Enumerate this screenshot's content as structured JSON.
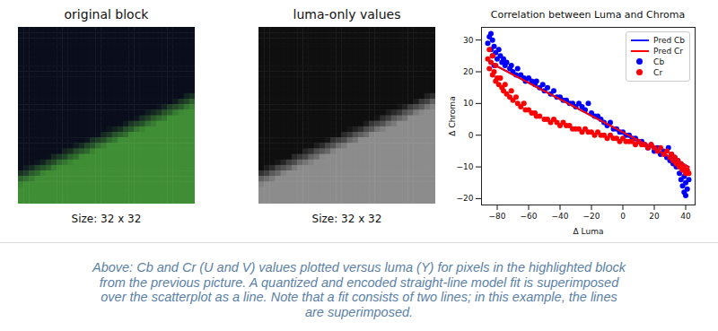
{
  "chart_data": [
    {
      "type": "image",
      "title": "original block",
      "subtitle": "Size: 32 x 32",
      "color": "#3f8e35"
    },
    {
      "type": "image",
      "title": "luma-only values",
      "subtitle": "Size: 32 x 32",
      "color": "#8c8c8c"
    },
    {
      "type": "scatter",
      "title": "Correlation between Luma and Chroma",
      "x_label": "Δ Luma",
      "y_label": "Δ Chroma",
      "xlim": [
        -90,
        46
      ],
      "ylim": [
        -22,
        34
      ],
      "xticks": [
        -80,
        -60,
        -40,
        -20,
        0,
        20,
        40
      ],
      "yticks": [
        -20,
        -10,
        0,
        10,
        20,
        30
      ],
      "legend": "upper right",
      "series": [
        {
          "name": "Pred Cb",
          "type": "line",
          "color": "#1a1aff",
          "x": [
            -85,
            42
          ],
          "values": [
            23,
            -10
          ]
        },
        {
          "name": "Pred Cr",
          "type": "line",
          "color": "#ff0000",
          "x": [
            -85,
            42
          ],
          "values": [
            23,
            -10
          ]
        },
        {
          "name": "Cb",
          "type": "scatter",
          "color": "#0000ff",
          "x": [
            -86,
            -85,
            -84,
            -84,
            -83,
            -83,
            -82,
            -82,
            -81,
            -80,
            -79,
            -78,
            -77,
            -76,
            -75,
            -74,
            -72,
            -71,
            -70,
            -68,
            -67,
            -65,
            -63,
            -62,
            -60,
            -58,
            -56,
            -55,
            -53,
            -51,
            -50,
            -48,
            -46,
            -44,
            -42,
            -40,
            -38,
            -36,
            -34,
            -32,
            -30,
            -28,
            -26,
            -24,
            -22,
            -20,
            -18,
            -16,
            -14,
            -12,
            -10,
            -8,
            -6,
            -4,
            -2,
            0,
            2,
            4,
            6,
            8,
            10,
            12,
            14,
            16,
            18,
            20,
            22,
            24,
            26,
            28,
            29,
            30,
            31,
            32,
            33,
            34,
            35,
            36,
            36,
            37,
            38,
            38,
            39,
            39,
            40,
            40,
            41,
            41,
            42
          ],
          "values": [
            29,
            31,
            32,
            27,
            30,
            25,
            28,
            22,
            26,
            24,
            27,
            25,
            23,
            24,
            22,
            23,
            21,
            22,
            20,
            19,
            21,
            19,
            18,
            17,
            18,
            17,
            16,
            17,
            15,
            16,
            14,
            15,
            13,
            14,
            12,
            12,
            11,
            11,
            10,
            10,
            9,
            10,
            9,
            8,
            10,
            7,
            6,
            6,
            5,
            4,
            3,
            4,
            2,
            2,
            1,
            1,
            0,
            0,
            -1,
            -1,
            -2,
            -2,
            -3,
            -4,
            -3,
            -5,
            -4,
            -6,
            -5,
            -7,
            -4,
            -8,
            -6,
            -9,
            -7,
            -10,
            -8,
            -12,
            -9,
            -14,
            -11,
            -16,
            -13,
            -18,
            -15,
            -19,
            -17,
            -12,
            -14
          ]
        },
        {
          "name": "Cr",
          "type": "scatter",
          "color": "#ff0000",
          "x": [
            -86,
            -85,
            -85,
            -84,
            -83,
            -83,
            -82,
            -81,
            -81,
            -80,
            -79,
            -78,
            -77,
            -76,
            -75,
            -74,
            -72,
            -71,
            -70,
            -68,
            -67,
            -65,
            -63,
            -62,
            -60,
            -58,
            -56,
            -55,
            -53,
            -50,
            -48,
            -46,
            -44,
            -42,
            -40,
            -38,
            -36,
            -34,
            -32,
            -30,
            -28,
            -26,
            -24,
            -22,
            -20,
            -18,
            -16,
            -14,
            -12,
            -10,
            -8,
            -6,
            -4,
            -2,
            0,
            2,
            4,
            6,
            8,
            10,
            12,
            14,
            16,
            18,
            20,
            22,
            24,
            26,
            28,
            30,
            31,
            32,
            33,
            34,
            35,
            36,
            37,
            38,
            39,
            40,
            41,
            42
          ],
          "values": [
            24,
            27,
            21,
            23,
            19,
            25,
            20,
            17,
            22,
            18,
            16,
            18,
            15,
            14,
            16,
            13,
            12,
            14,
            11,
            12,
            10,
            9,
            10,
            8,
            8,
            7,
            7,
            6,
            6,
            5,
            5,
            4,
            5,
            4,
            3,
            4,
            3,
            3,
            2,
            2,
            2,
            1,
            2,
            1,
            1,
            0,
            1,
            0,
            0,
            -1,
            0,
            -1,
            -1,
            -2,
            -1,
            -2,
            -2,
            -2,
            -3,
            -2,
            -3,
            -3,
            -4,
            -3,
            -4,
            -5,
            -4,
            -6,
            -5,
            -7,
            -6,
            -8,
            -7,
            -9,
            -8,
            -10,
            -9,
            -11,
            -10,
            -12,
            -11,
            -12
          ]
        }
      ]
    }
  ],
  "caption": [
    "Above: Cb and Cr (U and V) values plotted versus luma (Y) for pixels in the highlighted block",
    "from the previous picture. A quantized and encoded straight-line model fit is superimposed",
    "over the scatterplot as a line. Note that a fit consists of two lines; in this example, the lines",
    "are superimposed."
  ]
}
